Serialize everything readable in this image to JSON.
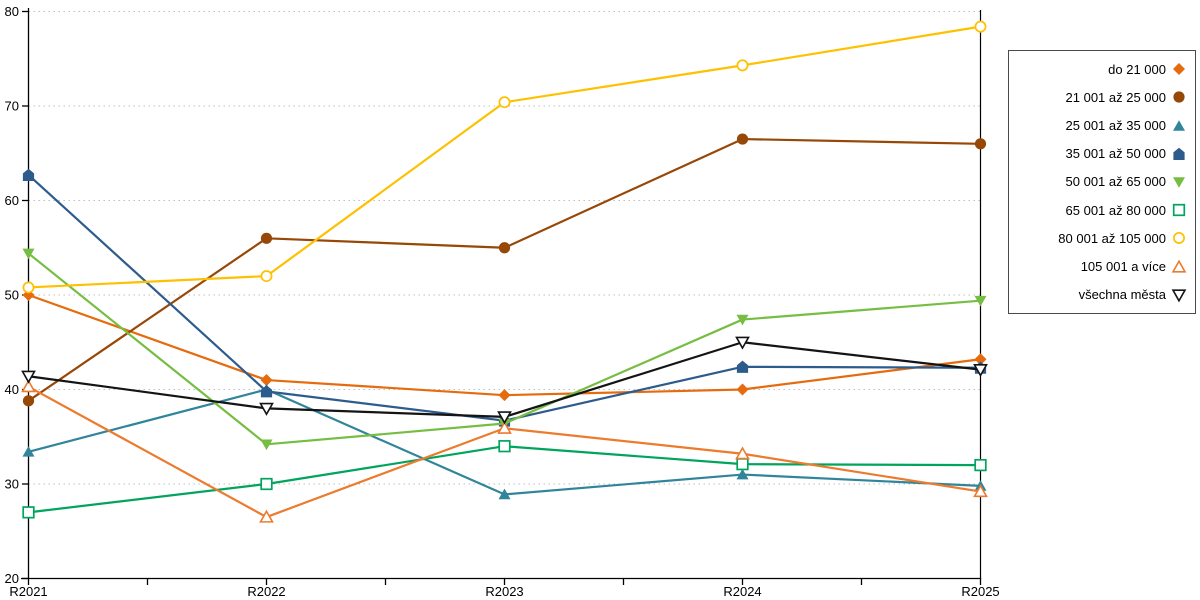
{
  "chart_data": {
    "type": "line",
    "title": "",
    "xlabel": "",
    "ylabel": "",
    "categories": [
      "R2021",
      "R2022",
      "R2023",
      "R2024",
      "R2025"
    ],
    "y_ticks": [
      "20",
      "30",
      "40",
      "50",
      "60",
      "70",
      "80"
    ],
    "ylim": [
      20,
      80
    ],
    "grid": "horizontal-dashed",
    "gridline_color": "#bfbfbf",
    "axis_color": "#000000",
    "legend_position": "right",
    "series": [
      {
        "name": "do 21 000",
        "marker": "diamond-filled",
        "color": "#e56b0e",
        "values": [
          50.0,
          41.0,
          39.4,
          40.0,
          43.2
        ]
      },
      {
        "name": "21 001 až 25 000",
        "marker": "circle-filled",
        "color": "#974706",
        "values": [
          38.8,
          56.0,
          55.0,
          66.5,
          66.0
        ]
      },
      {
        "name": "25 001 až 35 000",
        "marker": "triangle-up-filled",
        "color": "#31859b",
        "values": [
          33.4,
          40.0,
          28.9,
          31.0,
          29.8
        ]
      },
      {
        "name": "35 001 až 50 000",
        "marker": "pentagon-filled",
        "color": "#2d5c8c",
        "values": [
          62.7,
          39.8,
          36.7,
          42.4,
          42.3
        ]
      },
      {
        "name": "50 001 až 65 000",
        "marker": "triangle-down-filled",
        "color": "#76be43",
        "values": [
          54.4,
          34.2,
          36.4,
          47.4,
          49.4
        ]
      },
      {
        "name": "65 001 až 80 000",
        "marker": "square-open",
        "color": "#00a45d",
        "values": [
          27.0,
          30.0,
          34.0,
          32.1,
          32.0
        ]
      },
      {
        "name": "80 001 až 105 000",
        "marker": "circle-open",
        "color": "#ffc000",
        "values": [
          50.8,
          52.0,
          70.4,
          74.3,
          78.4
        ]
      },
      {
        "name": "105 001 a více",
        "marker": "triangle-up-open",
        "color": "#ec7b2d",
        "values": [
          40.3,
          26.5,
          35.9,
          33.2,
          29.2
        ]
      },
      {
        "name": "všechna města",
        "marker": "triangle-down-open",
        "color": "#141414",
        "values": [
          41.4,
          38.0,
          37.1,
          45.0,
          42.1
        ]
      }
    ]
  }
}
